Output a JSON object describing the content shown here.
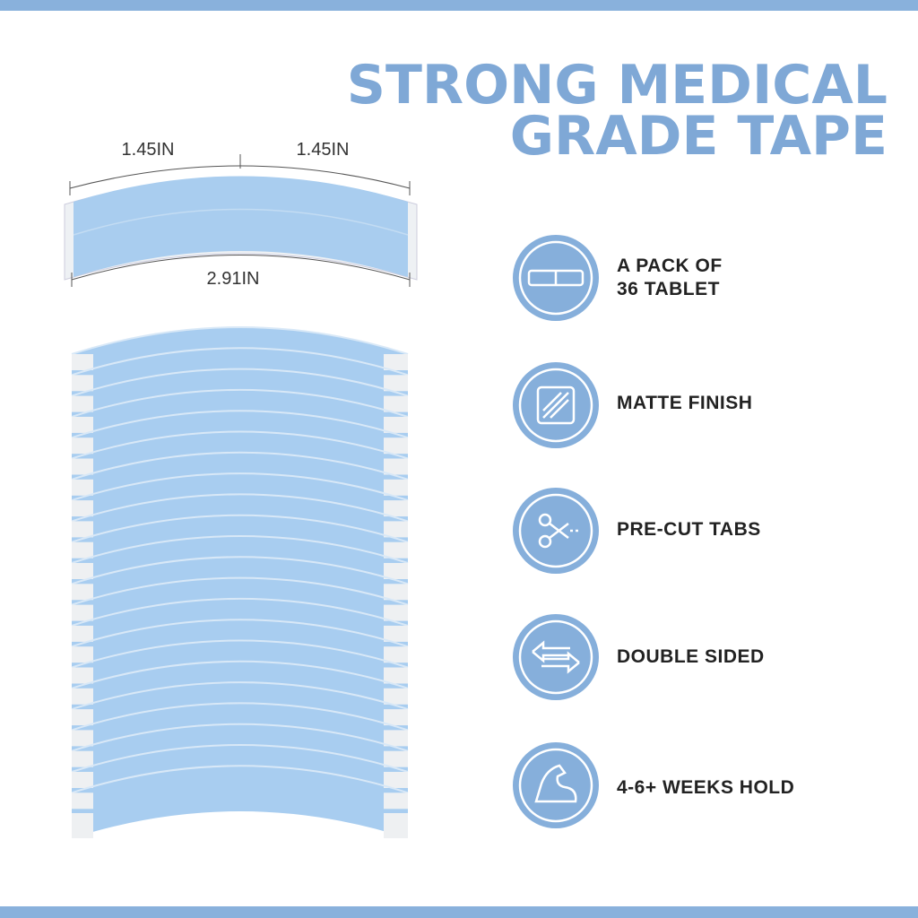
{
  "header": {
    "title_lines": [
      "STRONG MEDICAL",
      "GRADE TAPE"
    ]
  },
  "dimensions": {
    "left_half": "1.45IN",
    "right_half": "1.45IN",
    "full_width": "2.91IN"
  },
  "features": [
    {
      "lines": [
        "A PACK OF",
        "36 TABLET"
      ]
    },
    {
      "lines": [
        "MATTE FINISH"
      ]
    },
    {
      "lines": [
        "PRE-CUT TABS"
      ]
    },
    {
      "lines": [
        "DOUBLE SIDED"
      ]
    },
    {
      "lines": [
        "4-6+ WEEKS HOLD"
      ]
    }
  ]
}
